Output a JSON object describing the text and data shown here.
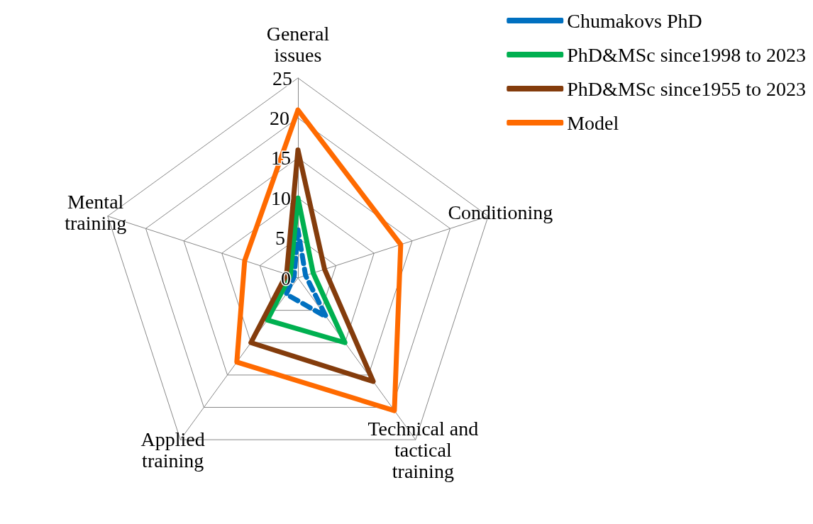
{
  "chart_data": {
    "type": "radar",
    "categories": [
      "General issues",
      "Conditioning",
      "Technical and tactical training",
      "Applied training",
      "Mental training"
    ],
    "ylim": [
      0,
      25
    ],
    "yticks": [
      0,
      5,
      10,
      15,
      20,
      25
    ],
    "grid": true,
    "legend": "top right",
    "marker": "none",
    "series": [
      {
        "name": "Chumakovs PhD",
        "color": "#0070c0",
        "line_style": "dashed",
        "values": [
          6,
          1,
          6,
          2.5,
          0.5
        ]
      },
      {
        "name": "PhD&MSc since1998 to 2023",
        "color": "#00b050",
        "values": [
          10,
          2,
          10,
          6.5,
          1
        ]
      },
      {
        "name": "PhD&MSc since1955 to 2023",
        "color": "#843c0c",
        "values": [
          16,
          3.5,
          16,
          10,
          1.5
        ]
      },
      {
        "name": "Model",
        "color": "#ff6a00",
        "values": [
          21,
          13.5,
          20.5,
          13,
          7
        ]
      }
    ]
  }
}
